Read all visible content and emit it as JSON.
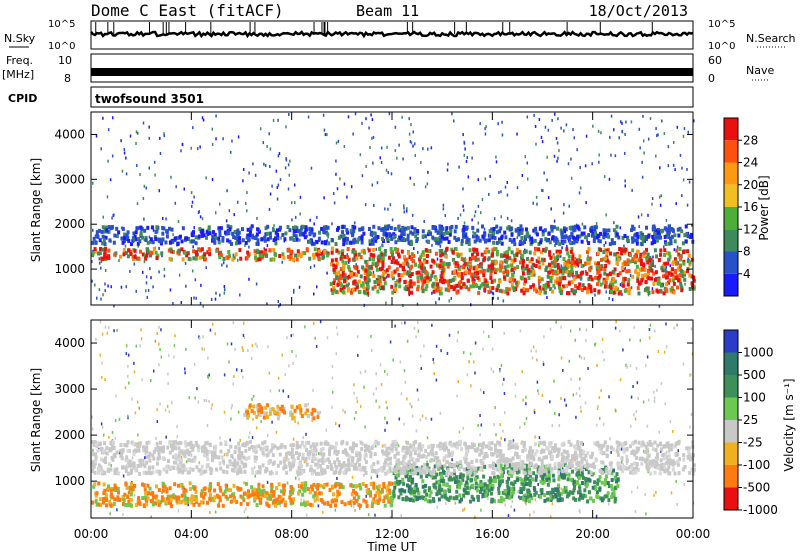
{
  "header": {
    "station": "Dome C East (fitACF)",
    "beam": "Beam 11",
    "date": "18/Oct/2013"
  },
  "summary": {
    "nsky_label": "N.Sky",
    "nsky_ticks": [
      "10^5",
      "10^0"
    ],
    "nsearch_label": "N.Search",
    "freq_label": "Freq.",
    "freq_unit": "[MHz]",
    "freq_ticks": [
      "10",
      "8"
    ],
    "nave_ticks": [
      "60",
      "0"
    ],
    "nave_label": "Nave",
    "cpid_label": "CPID",
    "cpid_value": "twofsound 3501"
  },
  "chart_data": [
    {
      "type": "heatmap",
      "name": "power",
      "ylabel": "Slant Range [km]",
      "xlabel": "",
      "ylim": [
        200,
        4500
      ],
      "yticks": [
        "1000",
        "2000",
        "3000",
        "4000"
      ],
      "xlim_hours": [
        0,
        24
      ],
      "colorbar": {
        "label": "Power [dB]",
        "ticks": [
          "4",
          "8",
          "12",
          "16",
          "20",
          "24",
          "28"
        ],
        "colors": [
          "#1a1aff",
          "#2a52c8",
          "#3f8a5a",
          "#4fae3a",
          "#f0c020",
          "#ff9a10",
          "#ff5010",
          "#e81010"
        ]
      },
      "features": [
        {
          "range_km": [
            1250,
            1500
          ],
          "hours": [
            0,
            9.5
          ],
          "level_db": 26
        },
        {
          "range_km": [
            500,
            1500
          ],
          "hours": [
            9.5,
            24
          ],
          "level_db": 24
        },
        {
          "range_km": [
            1600,
            2000
          ],
          "hours": [
            0,
            24
          ],
          "level_db": 6
        }
      ]
    },
    {
      "type": "heatmap",
      "name": "velocity",
      "ylabel": "Slant Range [km]",
      "xlabel": "Time UT",
      "ylim": [
        200,
        4500
      ],
      "yticks": [
        "1000",
        "2000",
        "3000",
        "4000"
      ],
      "xticks": [
        "00:00",
        "04:00",
        "08:00",
        "12:00",
        "16:00",
        "20:00",
        "00:00"
      ],
      "colorbar": {
        "label": "Velocity [m s⁻¹]",
        "ticks": [
          "1000",
          "500",
          "100",
          "25",
          "-25",
          "-100",
          "-500",
          "-1000"
        ],
        "colors": [
          "#2a3cc8",
          "#2f7a6a",
          "#3f8f5a",
          "#6cc850",
          "#c8c8c8",
          "#f0b020",
          "#ff7a10",
          "#e81010"
        ]
      },
      "features": [
        {
          "range_km": [
            2400,
            2700
          ],
          "hours": [
            6,
            9
          ],
          "velocity": -100
        },
        {
          "range_km": [
            500,
            1000
          ],
          "hours": [
            0,
            12
          ],
          "velocity": -200
        },
        {
          "range_km": [
            600,
            1400
          ],
          "hours": [
            12,
            21
          ],
          "velocity": 200
        },
        {
          "range_km": [
            1200,
            1900
          ],
          "hours": [
            0,
            24
          ],
          "velocity": 0
        }
      ]
    }
  ]
}
